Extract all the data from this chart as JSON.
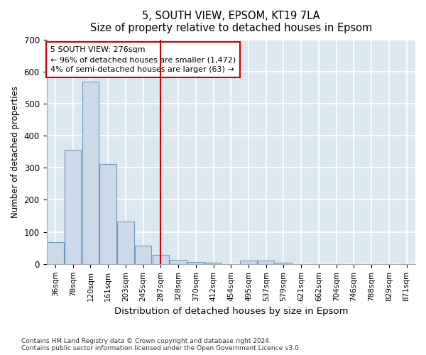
{
  "title": "5, SOUTH VIEW, EPSOM, KT19 7LA",
  "subtitle": "Size of property relative to detached houses in Epsom",
  "xlabel": "Distribution of detached houses by size in Epsom",
  "ylabel": "Number of detached properties",
  "categories": [
    "36sqm",
    "78sqm",
    "120sqm",
    "161sqm",
    "203sqm",
    "245sqm",
    "287sqm",
    "328sqm",
    "370sqm",
    "412sqm",
    "454sqm",
    "495sqm",
    "537sqm",
    "579sqm",
    "621sqm",
    "662sqm",
    "704sqm",
    "746sqm",
    "788sqm",
    "829sqm",
    "871sqm"
  ],
  "values": [
    68,
    355,
    568,
    312,
    133,
    57,
    28,
    13,
    7,
    5,
    0,
    10,
    10,
    5,
    0,
    0,
    0,
    0,
    0,
    0,
    0
  ],
  "bar_color": "#ccd9e8",
  "bar_edge_color": "#6b9abf",
  "vline_x_index": 6,
  "vline_color": "#cc0000",
  "annotation_text_line1": "5 SOUTH VIEW: 276sqm",
  "annotation_text_line2": "← 96% of detached houses are smaller (1,472)",
  "annotation_text_line3": "4% of semi-detached houses are larger (63) →",
  "annotation_box_color": "#ffffff",
  "annotation_box_edge": "#cc0000",
  "ylim": [
    0,
    700
  ],
  "yticks": [
    0,
    100,
    200,
    300,
    400,
    500,
    600,
    700
  ],
  "bg_color": "#ffffff",
  "plot_bg_color": "#dce8f0",
  "grid_color": "#ffffff",
  "footer_line1": "Contains HM Land Registry data © Crown copyright and database right 2024.",
  "footer_line2": "Contains public sector information licensed under the Open Government Licence v3.0."
}
